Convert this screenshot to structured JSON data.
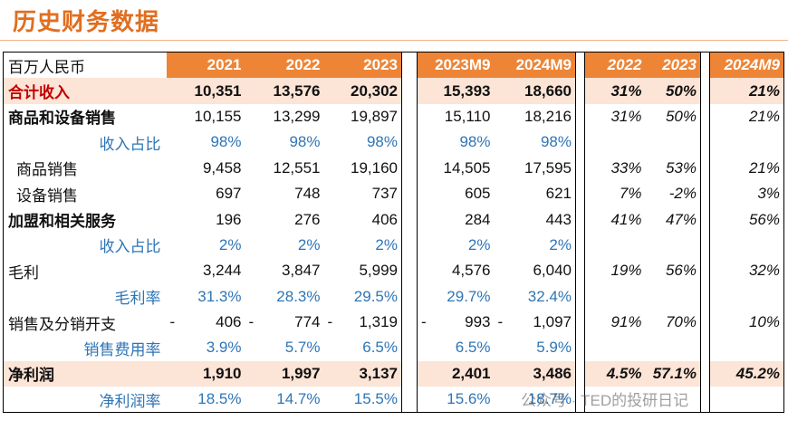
{
  "header": {
    "title": "历史财务数据"
  },
  "table": {
    "columns": [
      "百万人民币",
      "2021",
      "2022",
      "2023",
      "2023M9",
      "2024M9",
      "2022",
      "2023",
      "2024M9"
    ],
    "rows": [
      {
        "label": "合计收入",
        "cells": [
          "10,351",
          "13,576",
          "20,302",
          "15,393",
          "18,660",
          "31%",
          "50%",
          "21%"
        ]
      },
      {
        "label": "商品和设备销售",
        "cells": [
          "10,155",
          "13,299",
          "19,897",
          "15,110",
          "18,216",
          "31%",
          "50%",
          "21%"
        ]
      },
      {
        "label": "收入占比",
        "cells": [
          "98%",
          "98%",
          "98%",
          "98%",
          "98%",
          null,
          null,
          null
        ]
      },
      {
        "label": "商品销售",
        "cells": [
          "9,458",
          "12,551",
          "19,160",
          "14,505",
          "17,595",
          "33%",
          "53%",
          "21%"
        ]
      },
      {
        "label": "设备销售",
        "cells": [
          "697",
          "748",
          "737",
          "605",
          "621",
          "7%",
          "-2%",
          "3%"
        ]
      },
      {
        "label": "加盟和相关服务",
        "cells": [
          "196",
          "276",
          "406",
          "284",
          "443",
          "41%",
          "47%",
          "56%"
        ]
      },
      {
        "label": "收入占比",
        "cells": [
          "2%",
          "2%",
          "2%",
          "2%",
          "2%",
          null,
          null,
          null
        ]
      },
      {
        "label": "毛利",
        "cells": [
          "3,244",
          "3,847",
          "5,999",
          "4,576",
          "6,040",
          "19%",
          "56%",
          "32%"
        ]
      },
      {
        "label": "毛利率",
        "cells": [
          "31.3%",
          "28.3%",
          "29.5%",
          "29.7%",
          "32.4%",
          null,
          null,
          null
        ]
      },
      {
        "label": "销售及分销开支",
        "cells": [
          {
            "sign": "-",
            "value": "406"
          },
          {
            "sign": "-",
            "value": "774"
          },
          {
            "sign": "-",
            "value": "1,319"
          },
          {
            "sign": "-",
            "value": "993"
          },
          {
            "sign": "-",
            "value": "1,097"
          },
          "91%",
          "70%",
          "10%"
        ]
      },
      {
        "label": "销售费用率",
        "cells": [
          "3.9%",
          "5.7%",
          "6.5%",
          "6.5%",
          "5.9%",
          null,
          null,
          null
        ]
      },
      {
        "label": "净利润",
        "cells": [
          "1,910",
          "1,997",
          "3,137",
          "2,401",
          "3,486",
          "4.5%",
          "57.1%",
          "45.2%"
        ]
      },
      {
        "label": "净利润率",
        "cells": [
          "18.5%",
          "14.7%",
          "15.5%",
          "15.6%",
          "18.7%",
          null,
          null,
          null
        ]
      }
    ]
  },
  "watermark": "公众号 · TED的投研日记"
}
